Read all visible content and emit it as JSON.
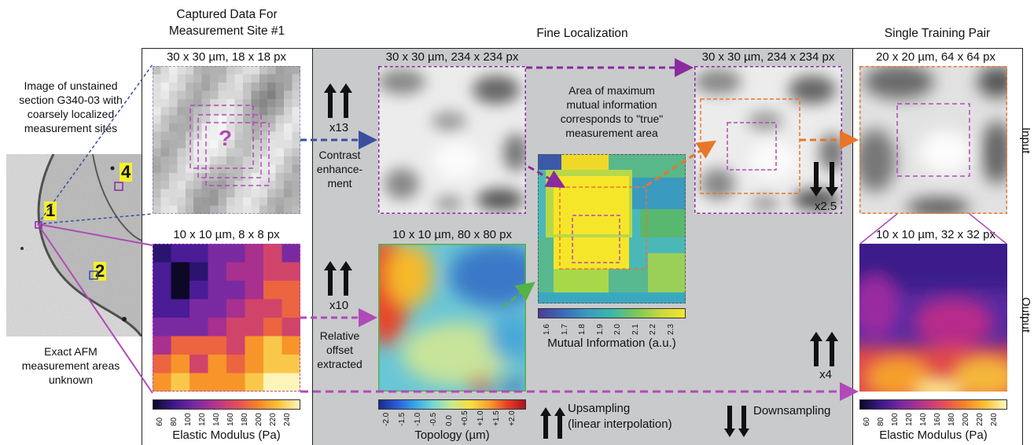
{
  "headers": {
    "captured_line1": "Captured Data For",
    "captured_line2": "Measurement Site #1",
    "fine": "Fine Localization",
    "single": "Single Training Pair"
  },
  "row_labels": {
    "input": "Input",
    "output": "Output"
  },
  "left_panel": {
    "caption_lines": [
      "Image of unstained",
      "section G340-03 with",
      "coarsely localized",
      "measurement sites"
    ],
    "site_labels": [
      "1",
      "2",
      "4"
    ],
    "bottom_lines": [
      "Exact AFM",
      "measurement areas",
      "unknown"
    ]
  },
  "panels": {
    "cap_input_title": "30 x 30 µm, 18 x 18 px",
    "cap_output_title": "10 x 10 µm, 8 x 8 px",
    "fine_input_title": "30 x 30 µm, 234 x 234 px",
    "fine_output_title": "10 x 10 µm, 80 x 80 px",
    "fine_input2_title": "30 x 30 µm, 234 x 234 px",
    "train_input_title": "20 x 20 µm, 64 x 64 px",
    "train_output_title": "10 x 10 µm, 32 x 32 px"
  },
  "question_mark": "?",
  "steps": {
    "x13": "x13",
    "contrast_lines": [
      "Contrast",
      "enhance-",
      "ment"
    ],
    "x10": "x10",
    "offset_lines": [
      "Relative",
      "offset",
      "extracted"
    ],
    "x2_5": "x2.5",
    "x4": "x4"
  },
  "mutual_info": {
    "annotation_lines": [
      "Area of maximum",
      "mutual information",
      "corresponds to \"true\"",
      "measurement area"
    ],
    "ticks": [
      "1.6",
      "1.7",
      "1.8",
      "1.9",
      "2.0",
      "2.1",
      "2.2",
      "2.3"
    ],
    "label": "Mutual Information (a.u.)"
  },
  "elastic_colorbar": {
    "ticks": [
      "60",
      "80",
      "100",
      "120",
      "140",
      "160",
      "180",
      "200",
      "220",
      "240"
    ],
    "label": "Elastic Modulus (Pa)"
  },
  "topology_colorbar": {
    "ticks": [
      "-2.0",
      "-1.5",
      "-1.0",
      "-0.5",
      "0.0",
      "+0.5",
      "+1.0",
      "+1.5",
      "+2.0"
    ],
    "label": "Topology (µm)"
  },
  "legend": {
    "up_lines": [
      "Upsampling",
      "(linear interpolation)"
    ],
    "down": "Downsampling"
  },
  "colors": {
    "blue_dashed": "#3b4fa0",
    "purple_dashed": "#8a2a9e",
    "magenta_dashed": "#b04ab8",
    "green_dashed": "#55b245",
    "orange_dashed": "#e8762a",
    "panel_grey": "#c9cacc",
    "site_label_bg": "#f5f02a"
  }
}
